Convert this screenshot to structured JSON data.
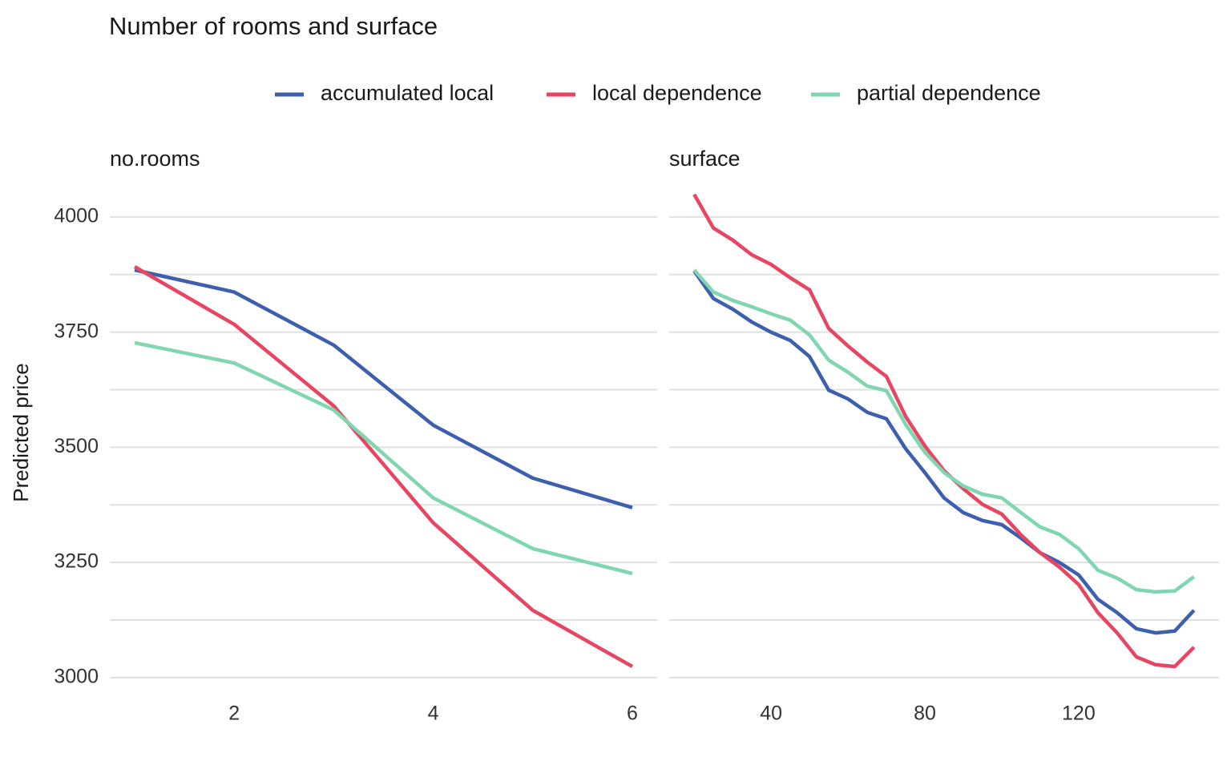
{
  "title": "Number of rooms and surface",
  "y_label": "Predicted price",
  "chart_data": [
    {
      "type": "line",
      "subtitle": "no.rooms",
      "x": [
        1,
        2,
        3,
        4,
        5,
        6
      ],
      "series": [
        {
          "name": "accumulated local",
          "color": "#3d5fad",
          "values": [
            3885,
            3837,
            3722,
            3548,
            3433,
            3369
          ]
        },
        {
          "name": "local dependence",
          "color": "#e84562",
          "values": [
            3892,
            3767,
            3590,
            3336,
            3146,
            3024
          ]
        },
        {
          "name": "partial dependence",
          "color": "#80d6b0",
          "values": [
            3727,
            3683,
            3581,
            3390,
            3280,
            3226
          ]
        }
      ],
      "xlim": [
        0.75,
        6.25
      ],
      "xticks": [
        2,
        4,
        6
      ],
      "ylim": [
        2965,
        4099
      ],
      "yticks": [
        3000,
        3250,
        3500,
        3750,
        4000
      ],
      "minor_yticks": [
        3125,
        3375,
        3625,
        3875
      ],
      "grid": true,
      "legend": "top"
    },
    {
      "type": "line",
      "subtitle": "surface",
      "x": [
        20,
        25,
        30,
        35,
        40,
        45,
        50,
        55,
        60,
        65,
        70,
        75,
        80,
        85,
        90,
        95,
        100,
        105,
        110,
        115,
        120,
        125,
        130,
        135,
        140,
        145,
        150
      ],
      "series": [
        {
          "name": "accumulated local",
          "color": "#3d5fad",
          "values": [
            3883,
            3823,
            3800,
            3772,
            3750,
            3732,
            3697,
            3624,
            3605,
            3576,
            3562,
            3497,
            3445,
            3390,
            3358,
            3341,
            3332,
            3303,
            3271,
            3250,
            3223,
            3170,
            3141,
            3106,
            3097,
            3101,
            3146
          ]
        },
        {
          "name": "local dependence",
          "color": "#e84562",
          "values": [
            4049,
            3976,
            3950,
            3918,
            3897,
            3868,
            3842,
            3758,
            3720,
            3685,
            3654,
            3567,
            3503,
            3449,
            3410,
            3376,
            3355,
            3310,
            3271,
            3240,
            3202,
            3141,
            3097,
            3045,
            3028,
            3024,
            3066
          ]
        },
        {
          "name": "partial dependence",
          "color": "#80d6b0",
          "values": [
            3885,
            3837,
            3819,
            3805,
            3790,
            3776,
            3744,
            3689,
            3663,
            3633,
            3623,
            3550,
            3489,
            3445,
            3416,
            3398,
            3390,
            3358,
            3327,
            3311,
            3280,
            3233,
            3216,
            3191,
            3186,
            3188,
            3219
          ]
        }
      ],
      "xlim": [
        13.5,
        156.5
      ],
      "xticks": [
        40,
        80,
        120
      ],
      "ylim": [
        2965,
        4099
      ],
      "yticks": [
        3000,
        3250,
        3500,
        3750,
        4000
      ],
      "minor_yticks": [
        3125,
        3375,
        3625,
        3875
      ],
      "grid": true
    }
  ]
}
